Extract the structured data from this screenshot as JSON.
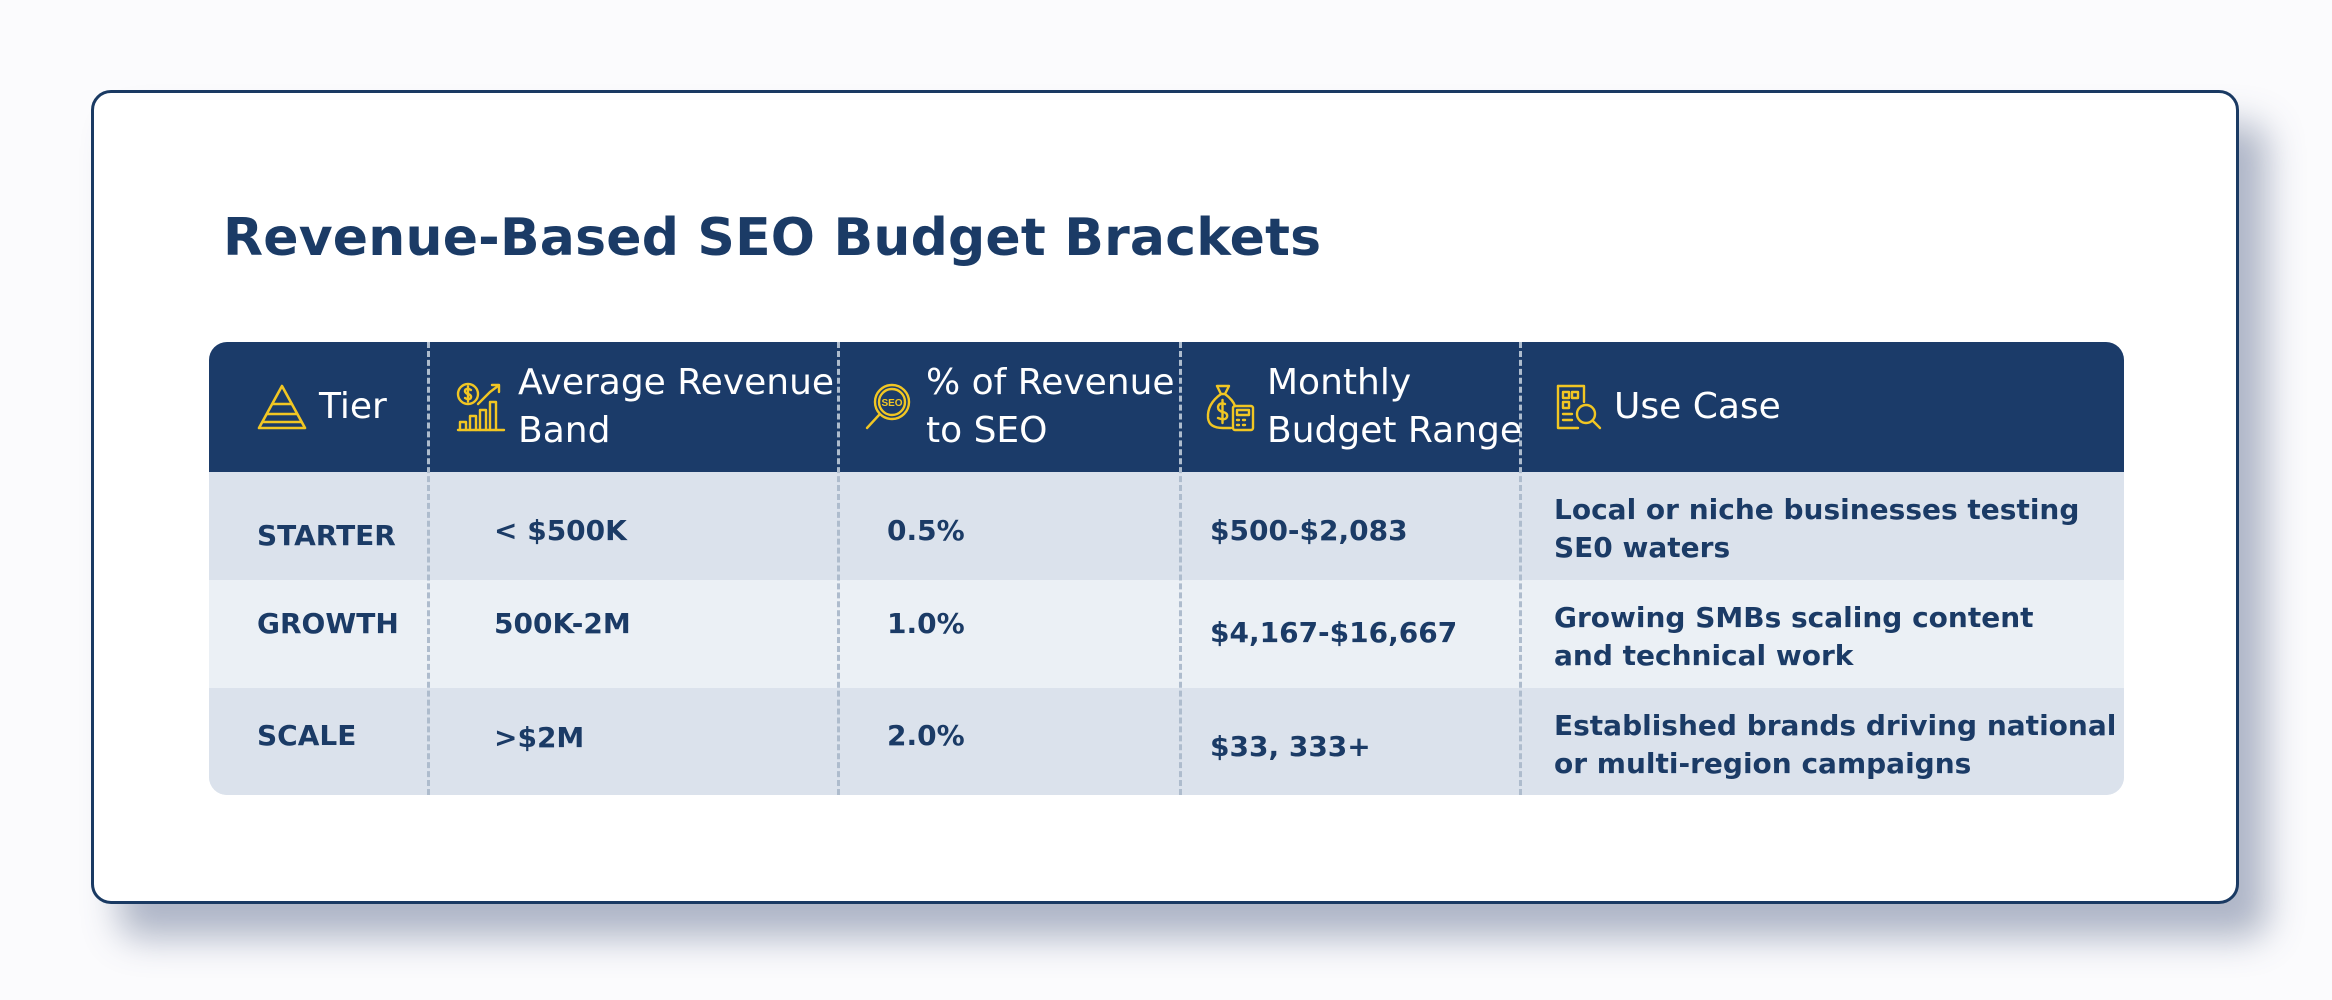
{
  "title": "Revenue-Based SEO Budget Brackets",
  "accent_color": "#f1c623",
  "header_color": "#1b3b69",
  "columns": [
    {
      "label_lines": [
        "Tier"
      ],
      "icon": "pyramid-icon"
    },
    {
      "label_lines": [
        "Average Revenue",
        "Band"
      ],
      "icon": "revenue-growth-chart-icon"
    },
    {
      "label_lines": [
        "% of Revenue",
        "to SEO"
      ],
      "icon": "seo-magnifier-icon"
    },
    {
      "label_lines": [
        "Monthly",
        "Budget Range"
      ],
      "icon": "money-bag-calculator-icon"
    },
    {
      "label_lines": [
        "Use Case"
      ],
      "icon": "document-search-icon"
    }
  ],
  "rows": [
    {
      "tier": "STARTER",
      "revenue_band": "< $500K",
      "percent": "0.5%",
      "budget": "$500-$2,083",
      "use_case_lines": [
        "Local or niche businesses testing",
        "SE0 waters"
      ]
    },
    {
      "tier": "GROWTH",
      "revenue_band": "500K-2M",
      "percent": "1.0%",
      "budget": "$4,167-$16,667",
      "use_case_lines": [
        "Growing SMBs scaling content",
        "and technical work"
      ]
    },
    {
      "tier": "SCALE",
      "revenue_band": ">$2M",
      "percent": "2.0%",
      "budget": "$33, 333+",
      "use_case_lines": [
        "Established brands driving national",
        "or multi-region campaigns"
      ]
    }
  ]
}
